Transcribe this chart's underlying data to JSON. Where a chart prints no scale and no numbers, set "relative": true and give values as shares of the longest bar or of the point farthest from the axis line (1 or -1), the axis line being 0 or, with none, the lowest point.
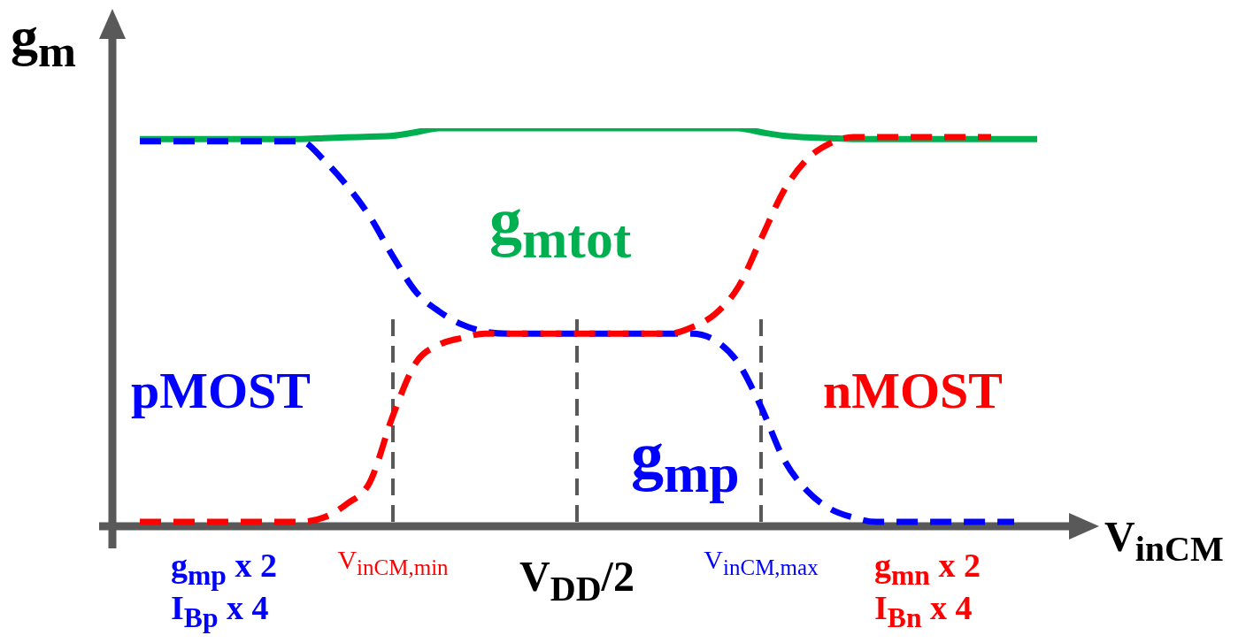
{
  "chart_data": {
    "type": "line",
    "relative": true,
    "xlabel": "V$_{inCM}$",
    "ylabel": "g$_{m}$",
    "categories": [
      null,
      null,
      null,
      null,
      null,
      null,
      null,
      null,
      null,
      null,
      null,
      null,
      null,
      null,
      null,
      null,
      null,
      null,
      null,
      null,
      null,
      null,
      null,
      null,
      null,
      null,
      null,
      null,
      null,
      null,
      null,
      null,
      null,
      null,
      null,
      null,
      null,
      null,
      null,
      null,
      null
    ],
    "series": [
      {
        "name": "g$_{mtot}$",
        "color": "#00b050",
        "line_style": "solid",
        "values": [
          null,
          0.973,
          0.973,
          0.973,
          0.973,
          0.973,
          0.973,
          0.973,
          0.973,
          0.975,
          0.977,
          0.979,
          0.981,
          0.99,
          1,
          1,
          1,
          1,
          1,
          1,
          1,
          1,
          1,
          1,
          1,
          1,
          1,
          1,
          0.99,
          0.981,
          0.977,
          0.975,
          0.973,
          0.973,
          0.973,
          0.973,
          0.973,
          0.973,
          0.973,
          0.973,
          0.973
        ]
      },
      {
        "name": "pMOST",
        "color": "#0000ff",
        "line_style": "dashed",
        "values": [
          null,
          0.967,
          0.967,
          0.967,
          0.967,
          0.967,
          0.967,
          0.967,
          0.967,
          0.92,
          0.856,
          0.778,
          0.678,
          0.589,
          0.54,
          0.507,
          0.489,
          0.484,
          0.484,
          0.484,
          0.484,
          0.484,
          0.484,
          0.484,
          0.484,
          0.484,
          0.467,
          0.411,
          0.3,
          0.167,
          0.089,
          0.044,
          0.022,
          0.011,
          0.011,
          0.011,
          0.011,
          0.011,
          0.011,
          0.011,
          null
        ]
      },
      {
        "name": "nMOST",
        "color": "#ff0000",
        "line_style": "dashed",
        "values": [
          null,
          0.011,
          0.011,
          0.011,
          0.011,
          0.011,
          0.011,
          0.011,
          0.011,
          0.022,
          0.056,
          0.111,
          0.278,
          0.411,
          0.456,
          0.473,
          0.484,
          0.484,
          0.484,
          0.484,
          0.484,
          0.484,
          0.484,
          0.484,
          0.484,
          0.5,
          0.533,
          0.6,
          0.722,
          0.844,
          0.922,
          0.962,
          0.978,
          0.978,
          0.978,
          0.978,
          0.978,
          0.978,
          0.978,
          null,
          null
        ]
      }
    ],
    "annotations": [
      "g$_{mp}$",
      "g$_{mp}$ x 2",
      "I$_{Bp}$ x 4",
      "g$_{mn}$ x 2",
      "I$_{Bn}$ x 4",
      "V$_{inCM,min}$",
      "V$_{DD}$/2",
      "V$_{inCM,max}$"
    ]
  }
}
